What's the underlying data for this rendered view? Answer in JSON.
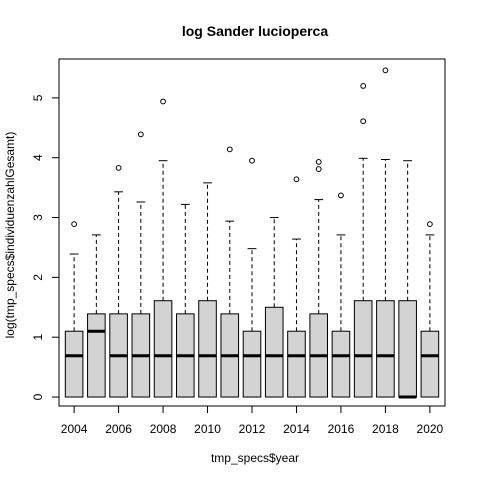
{
  "chart_data": {
    "type": "boxplot",
    "title": "log Sander lucioperca",
    "xlabel": "tmp_specs$year",
    "ylabel": "log(tmp_specs$individuenzahlGesamt)",
    "categories": [
      "2004",
      "2005",
      "2006",
      "2007",
      "2008",
      "2009",
      "2010",
      "2011",
      "2012",
      "2013",
      "2014",
      "2015",
      "2016",
      "2017",
      "2018",
      "2019",
      "2020"
    ],
    "x_tick_labels": [
      "2004",
      "2006",
      "2008",
      "2010",
      "2012",
      "2014",
      "2016",
      "2018",
      "2020"
    ],
    "y_tick_labels": [
      "0",
      "1",
      "2",
      "3",
      "4",
      "5"
    ],
    "ylim": [
      -0.15,
      5.65
    ],
    "box_fill": "#d3d3d3",
    "boxes": [
      {
        "year": "2004",
        "whisker_low": 0,
        "q1": 0,
        "median": 0.69,
        "q3": 1.1,
        "whisker_high": 2.39,
        "outliers": [
          2.89
        ]
      },
      {
        "year": "2005",
        "whisker_low": 0,
        "q1": 0,
        "median": 1.1,
        "q3": 1.39,
        "whisker_high": 2.71,
        "outliers": []
      },
      {
        "year": "2006",
        "whisker_low": 0,
        "q1": 0,
        "median": 0.69,
        "q3": 1.39,
        "whisker_high": 3.43,
        "outliers": [
          3.83
        ]
      },
      {
        "year": "2007",
        "whisker_low": 0,
        "q1": 0,
        "median": 0.69,
        "q3": 1.39,
        "whisker_high": 3.26,
        "outliers": [
          4.39
        ]
      },
      {
        "year": "2008",
        "whisker_low": 0,
        "q1": 0,
        "median": 0.69,
        "q3": 1.61,
        "whisker_high": 3.95,
        "outliers": [
          4.94
        ]
      },
      {
        "year": "2009",
        "whisker_low": 0,
        "q1": 0,
        "median": 0.69,
        "q3": 1.39,
        "whisker_high": 3.22,
        "outliers": []
      },
      {
        "year": "2010",
        "whisker_low": 0,
        "q1": 0,
        "median": 0.69,
        "q3": 1.61,
        "whisker_high": 3.58,
        "outliers": []
      },
      {
        "year": "2011",
        "whisker_low": 0,
        "q1": 0,
        "median": 0.69,
        "q3": 1.39,
        "whisker_high": 2.94,
        "outliers": [
          4.14
        ]
      },
      {
        "year": "2012",
        "whisker_low": 0,
        "q1": 0,
        "median": 0.69,
        "q3": 1.1,
        "whisker_high": 2.48,
        "outliers": [
          3.95
        ]
      },
      {
        "year": "2013",
        "whisker_low": 0,
        "q1": 0,
        "median": 0.69,
        "q3": 1.5,
        "whisker_high": 3.0,
        "outliers": []
      },
      {
        "year": "2014",
        "whisker_low": 0,
        "q1": 0,
        "median": 0.69,
        "q3": 1.1,
        "whisker_high": 2.64,
        "outliers": [
          3.64
        ]
      },
      {
        "year": "2015",
        "whisker_low": 0,
        "q1": 0,
        "median": 0.69,
        "q3": 1.39,
        "whisker_high": 3.3,
        "outliers": [
          3.81,
          3.93
        ]
      },
      {
        "year": "2016",
        "whisker_low": 0,
        "q1": 0,
        "median": 0.69,
        "q3": 1.1,
        "whisker_high": 2.71,
        "outliers": [
          3.37
        ]
      },
      {
        "year": "2017",
        "whisker_low": 0,
        "q1": 0,
        "median": 0.69,
        "q3": 1.61,
        "whisker_high": 3.99,
        "outliers": [
          4.61,
          5.2
        ]
      },
      {
        "year": "2018",
        "whisker_low": 0,
        "q1": 0,
        "median": 0.69,
        "q3": 1.61,
        "whisker_high": 3.97,
        "outliers": [
          5.46
        ]
      },
      {
        "year": "2019",
        "whisker_low": 0,
        "q1": 0,
        "median": 0,
        "q3": 1.61,
        "whisker_high": 3.95,
        "outliers": []
      },
      {
        "year": "2020",
        "whisker_low": 0,
        "q1": 0,
        "median": 0.69,
        "q3": 1.1,
        "whisker_high": 2.71,
        "outliers": [
          2.89
        ]
      }
    ]
  }
}
